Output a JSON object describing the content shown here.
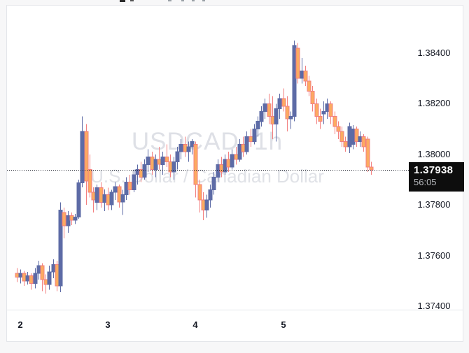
{
  "chart": {
    "watermark_symbol": "USDCAD, 1h",
    "watermark_name": "U.S. Dollar / Canadian Dollar",
    "last_price": "1.37938",
    "countdown": "56:05",
    "colors": {
      "up_body": "#5d6ba6",
      "up_wick": "#5d6ba6",
      "down_body": "#fcab61",
      "down_border": "#f37f7f",
      "down_wick": "#f37f7f",
      "price_line": "#131722",
      "badge_bg": "#0d0d0d",
      "badge_text": "#ffffff",
      "countdown_text": "#b7b9bd",
      "axis_text": "#131722",
      "frame": "#e4e6ea",
      "watermark": "#dee0e6"
    }
  },
  "chart_data": {
    "type": "candlestick",
    "title": "USDCAD, 1h",
    "subtitle": "U.S. Dollar / Canadian Dollar",
    "legend_position": "center-watermark",
    "grid": false,
    "ylim": [
      1.3738,
      1.3859
    ],
    "y_ticks": [
      {
        "label": "1.38400",
        "value": 1.384
      },
      {
        "label": "1.38200",
        "value": 1.382
      },
      {
        "label": "1.38000",
        "value": 1.38
      },
      {
        "label": "1.37800",
        "value": 1.378
      },
      {
        "label": "1.37600",
        "value": 1.376
      },
      {
        "label": "1.37400",
        "value": 1.374
      }
    ],
    "x_ticks": [
      {
        "label": "2",
        "index": 1
      },
      {
        "label": "3",
        "index": 25
      },
      {
        "label": "4",
        "index": 49
      },
      {
        "label": "5",
        "index": 73
      }
    ],
    "price_line_value": 1.37938,
    "candles_ohlc": [
      [
        1.3753,
        1.3755,
        1.37495,
        1.37515
      ],
      [
        1.37515,
        1.37545,
        1.3749,
        1.3753
      ],
      [
        1.3753,
        1.3754,
        1.3748,
        1.375
      ],
      [
        1.375,
        1.37535,
        1.37485,
        1.3752
      ],
      [
        1.3752,
        1.3753,
        1.37465,
        1.3749
      ],
      [
        1.3749,
        1.3755,
        1.3747,
        1.3753
      ],
      [
        1.3753,
        1.3758,
        1.37505,
        1.3756
      ],
      [
        1.3756,
        1.3757,
        1.3746,
        1.37505
      ],
      [
        1.37505,
        1.37525,
        1.3745,
        1.37485
      ],
      [
        1.37485,
        1.3756,
        1.37465,
        1.37535
      ],
      [
        1.37535,
        1.37585,
        1.3751,
        1.37565
      ],
      [
        1.37565,
        1.3758,
        1.3746,
        1.3748
      ],
      [
        1.3748,
        1.3781,
        1.37455,
        1.3778
      ],
      [
        1.3777,
        1.3779,
        1.37668,
        1.37718
      ],
      [
        1.37718,
        1.37775,
        1.3769,
        1.37758
      ],
      [
        1.37758,
        1.3777,
        1.3772,
        1.3774
      ],
      [
        1.3774,
        1.37765,
        1.37725,
        1.37752
      ],
      [
        1.37752,
        1.379,
        1.37745,
        1.37888
      ],
      [
        1.37888,
        1.3815,
        1.3787,
        1.3809
      ],
      [
        1.3809,
        1.3812,
        1.378,
        1.37895
      ],
      [
        1.3794,
        1.38,
        1.3783,
        1.3785
      ],
      [
        1.3785,
        1.3787,
        1.3777,
        1.3782
      ],
      [
        1.3781,
        1.3788,
        1.3778,
        1.37868
      ],
      [
        1.37868,
        1.3789,
        1.3779,
        1.3781
      ],
      [
        1.3781,
        1.37862,
        1.37775,
        1.3784
      ],
      [
        1.3784,
        1.37868,
        1.3778,
        1.378
      ],
      [
        1.378,
        1.3786,
        1.3778,
        1.3785
      ],
      [
        1.3785,
        1.3789,
        1.3782,
        1.37872
      ],
      [
        1.37872,
        1.3788,
        1.3779,
        1.37812
      ],
      [
        1.37812,
        1.3786,
        1.3776,
        1.3784
      ],
      [
        1.3784,
        1.3791,
        1.3782,
        1.3789
      ],
      [
        1.3789,
        1.3792,
        1.3784,
        1.3786
      ],
      [
        1.3786,
        1.3794,
        1.3785,
        1.3792
      ],
      [
        1.3792,
        1.3796,
        1.3788,
        1.3794
      ],
      [
        1.3794,
        1.3797,
        1.3789,
        1.3791
      ],
      [
        1.3791,
        1.3798,
        1.379,
        1.3796
      ],
      [
        1.3796,
        1.3802,
        1.3793,
        1.3799
      ],
      [
        1.3799,
        1.3801,
        1.3792,
        1.3794
      ],
      [
        1.3794,
        1.38,
        1.3791,
        1.3798
      ],
      [
        1.3798,
        1.3803,
        1.3794,
        1.3796
      ],
      [
        1.3796,
        1.3801,
        1.3792,
        1.3799
      ],
      [
        1.3799,
        1.3804,
        1.3795,
        1.3797
      ],
      [
        1.3797,
        1.38,
        1.3791,
        1.3793
      ],
      [
        1.3793,
        1.3799,
        1.379,
        1.3797
      ],
      [
        1.3797,
        1.3803,
        1.3794,
        1.3801
      ],
      [
        1.3801,
        1.3806,
        1.3798,
        1.3804
      ],
      [
        1.3804,
        1.3807,
        1.3799,
        1.3801
      ],
      [
        1.3801,
        1.3805,
        1.3797,
        1.3803
      ],
      [
        1.3803,
        1.3806,
        1.38,
        1.3805
      ],
      [
        1.3804,
        1.3805,
        1.3783,
        1.3788
      ],
      [
        1.3788,
        1.379,
        1.3777,
        1.3782
      ],
      [
        1.3782,
        1.3785,
        1.3774,
        1.3778
      ],
      [
        1.3778,
        1.3784,
        1.3775,
        1.3782
      ],
      [
        1.3782,
        1.3788,
        1.3779,
        1.3786
      ],
      [
        1.3786,
        1.3793,
        1.3784,
        1.3791
      ],
      [
        1.3791,
        1.3798,
        1.3789,
        1.3796
      ],
      [
        1.3796,
        1.3799,
        1.3791,
        1.3793
      ],
      [
        1.3793,
        1.38,
        1.3792,
        1.3798
      ],
      [
        1.3798,
        1.3801,
        1.3793,
        1.3795
      ],
      [
        1.3795,
        1.3802,
        1.3794,
        1.38
      ],
      [
        1.38,
        1.3803,
        1.3796,
        1.3798
      ],
      [
        1.3798,
        1.3806,
        1.3797,
        1.3804
      ],
      [
        1.3804,
        1.3807,
        1.3799,
        1.3801
      ],
      [
        1.3801,
        1.3809,
        1.38,
        1.3807
      ],
      [
        1.3807,
        1.381,
        1.3803,
        1.3805
      ],
      [
        1.3805,
        1.3812,
        1.3804,
        1.381
      ],
      [
        1.381,
        1.3815,
        1.3807,
        1.3813
      ],
      [
        1.3813,
        1.3819,
        1.3811,
        1.3817
      ],
      [
        1.3817,
        1.3822,
        1.3814,
        1.382
      ],
      [
        1.382,
        1.3824,
        1.3812,
        1.3815
      ],
      [
        1.3815,
        1.3823,
        1.3806,
        1.3812
      ],
      [
        1.3812,
        1.382,
        1.3805,
        1.3818
      ],
      [
        1.3818,
        1.3824,
        1.3814,
        1.3822
      ],
      [
        1.3822,
        1.3826,
        1.3817,
        1.3819
      ],
      [
        1.3819,
        1.3823,
        1.3809,
        1.3814
      ],
      [
        1.3814,
        1.3817,
        1.381,
        1.3815
      ],
      [
        1.3815,
        1.3845,
        1.3813,
        1.3843
      ],
      [
        1.3842,
        1.3844,
        1.3828,
        1.383
      ],
      [
        1.383,
        1.3838,
        1.3828,
        1.3833
      ],
      [
        1.3833,
        1.3835,
        1.3827,
        1.3829
      ],
      [
        1.3829,
        1.3831,
        1.3823,
        1.3825
      ],
      [
        1.3825,
        1.3827,
        1.3817,
        1.382
      ],
      [
        1.382,
        1.3822,
        1.3812,
        1.3815
      ],
      [
        1.3815,
        1.3818,
        1.381,
        1.3813
      ],
      [
        1.3816,
        1.3821,
        1.3812,
        1.3817
      ],
      [
        1.3817,
        1.3822,
        1.3814,
        1.382
      ],
      [
        1.382,
        1.3821,
        1.3812,
        1.3815
      ],
      [
        1.3815,
        1.3817,
        1.3808,
        1.3811
      ],
      [
        1.3811,
        1.3813,
        1.3806,
        1.3809
      ],
      [
        1.3809,
        1.3811,
        1.3803,
        1.3805
      ],
      [
        1.3805,
        1.3807,
        1.3801,
        1.3803
      ],
      [
        1.3803,
        1.38125,
        1.38005,
        1.3811
      ],
      [
        1.3804,
        1.38115,
        1.3802,
        1.381
      ],
      [
        1.381,
        1.3811,
        1.3803,
        1.3805
      ],
      [
        1.3805,
        1.3809,
        1.3803,
        1.3807
      ],
      [
        1.3807,
        1.3808,
        1.3801,
        1.3803
      ],
      [
        1.3806,
        1.3807,
        1.3793,
        1.3795
      ],
      [
        1.3795,
        1.3797,
        1.3792,
        1.37938
      ]
    ]
  }
}
